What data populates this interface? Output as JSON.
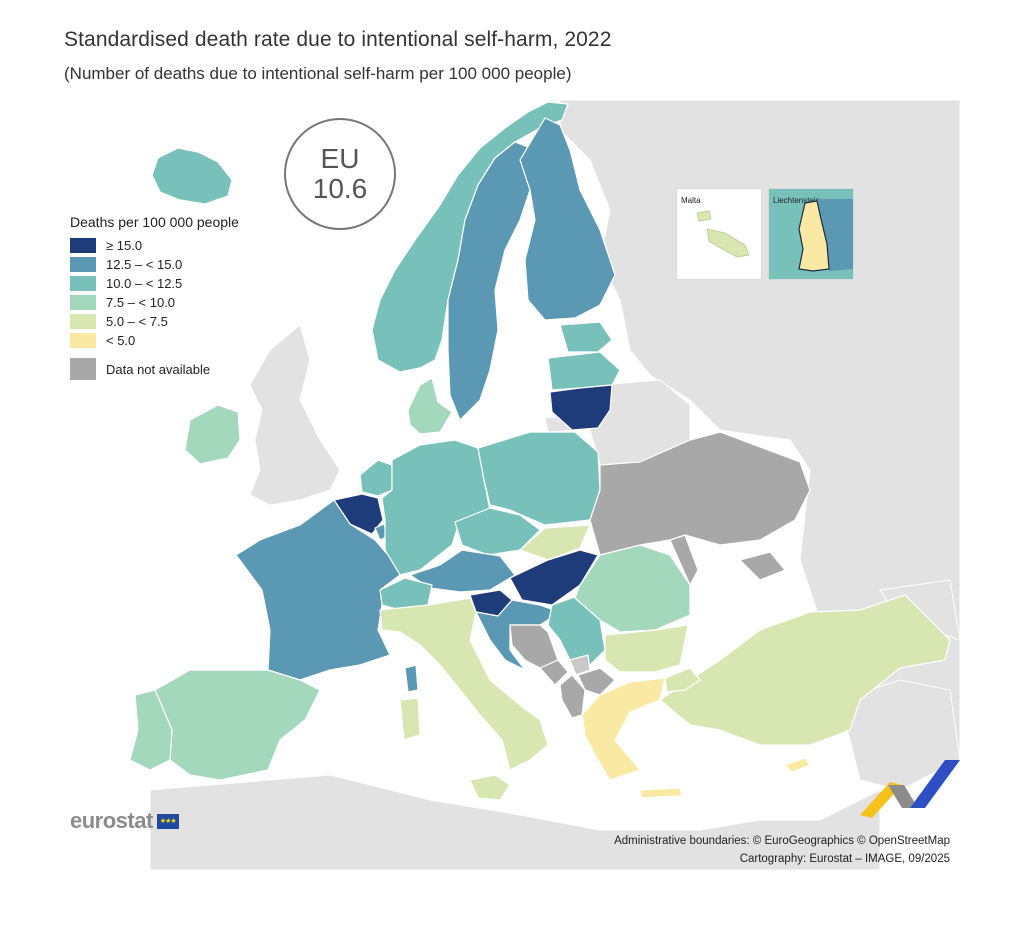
{
  "title": "Standardised death rate due to intentional self-harm, 2022",
  "subtitle": "(Number of deaths due to intentional self-harm per 100 000 people)",
  "eu_badge": {
    "label": "EU",
    "value": "10.6"
  },
  "legend": {
    "title": "Deaths per 100 000 people",
    "classes": [
      {
        "label": "≥ 15.0",
        "color": "#1f3c7a"
      },
      {
        "label": "12.5 – < 15.0",
        "color": "#5a98b4"
      },
      {
        "label": "10.0 – < 12.5",
        "color": "#78c1bb"
      },
      {
        "label": "7.5 – < 10.0",
        "color": "#a3d8bd"
      },
      {
        "label": "5.0 – < 7.5",
        "color": "#d8e7b2"
      },
      {
        "label": "< 5.0",
        "color": "#f9e9a3"
      }
    ],
    "na": {
      "label": "Data not available",
      "color": "#a8a8a8"
    }
  },
  "insets": {
    "malta": "Malta",
    "liechtenstein": "Liechtenstein"
  },
  "colors": {
    "sea": "#ffffff",
    "non_eea_land": "#e2e2e2",
    "border": "#ffffff"
  },
  "countries": [
    {
      "name": "Iceland",
      "class": "10.0 – < 12.5"
    },
    {
      "name": "Norway",
      "class": "10.0 – < 12.5"
    },
    {
      "name": "Sweden",
      "class": "12.5 – < 15.0"
    },
    {
      "name": "Finland",
      "class": "12.5 – < 15.0"
    },
    {
      "name": "Estonia",
      "class": "10.0 – < 12.5"
    },
    {
      "name": "Latvia",
      "class": "10.0 – < 12.5"
    },
    {
      "name": "Lithuania",
      "class": "≥ 15.0"
    },
    {
      "name": "Denmark",
      "class": "7.5 – < 10.0"
    },
    {
      "name": "Ireland",
      "class": "7.5 – < 10.0"
    },
    {
      "name": "Netherlands",
      "class": "10.0 – < 12.5"
    },
    {
      "name": "Belgium",
      "class": "≥ 15.0"
    },
    {
      "name": "Luxembourg",
      "class": "12.5 – < 15.0"
    },
    {
      "name": "Germany",
      "class": "10.0 – < 12.5"
    },
    {
      "name": "Poland",
      "class": "10.0 – < 12.5"
    },
    {
      "name": "Czechia",
      "class": "10.0 – < 12.5"
    },
    {
      "name": "Slovakia",
      "class": "5.0 – < 7.5"
    },
    {
      "name": "Austria",
      "class": "12.5 – < 15.0"
    },
    {
      "name": "Hungary",
      "class": "≥ 15.0"
    },
    {
      "name": "Slovenia",
      "class": "≥ 15.0"
    },
    {
      "name": "Croatia",
      "class": "12.5 – < 15.0"
    },
    {
      "name": "Switzerland",
      "class": "10.0 – < 12.5"
    },
    {
      "name": "Liechtenstein",
      "class": "< 5.0"
    },
    {
      "name": "France",
      "class": "12.5 – < 15.0"
    },
    {
      "name": "Spain",
      "class": "7.5 – < 10.0"
    },
    {
      "name": "Portugal",
      "class": "7.5 – < 10.0"
    },
    {
      "name": "Italy",
      "class": "5.0 – < 7.5"
    },
    {
      "name": "Malta",
      "class": "5.0 – < 7.5"
    },
    {
      "name": "Romania",
      "class": "7.5 – < 10.0"
    },
    {
      "name": "Bulgaria",
      "class": "5.0 – < 7.5"
    },
    {
      "name": "Serbia",
      "class": "10.0 – < 12.5"
    },
    {
      "name": "Greece",
      "class": "< 5.0"
    },
    {
      "name": "Cyprus",
      "class": "< 5.0"
    },
    {
      "name": "Türkiye",
      "class": "5.0 – < 7.5"
    },
    {
      "name": "Bosnia and Herzegovina",
      "class": "Data not available"
    },
    {
      "name": "Montenegro",
      "class": "Data not available"
    },
    {
      "name": "Albania",
      "class": "Data not available"
    },
    {
      "name": "North Macedonia",
      "class": "Data not available"
    },
    {
      "name": "Kosovo",
      "class": "Data not available"
    },
    {
      "name": "Ukraine",
      "class": "Data not available"
    },
    {
      "name": "Moldova",
      "class": "Data not available"
    }
  ],
  "logo_text": "eurostat",
  "credits": [
    "Administrative boundaries: © EuroGeographics © OpenStreetMap",
    "Cartography: Eurostat – IMAGE, 09/2025"
  ]
}
